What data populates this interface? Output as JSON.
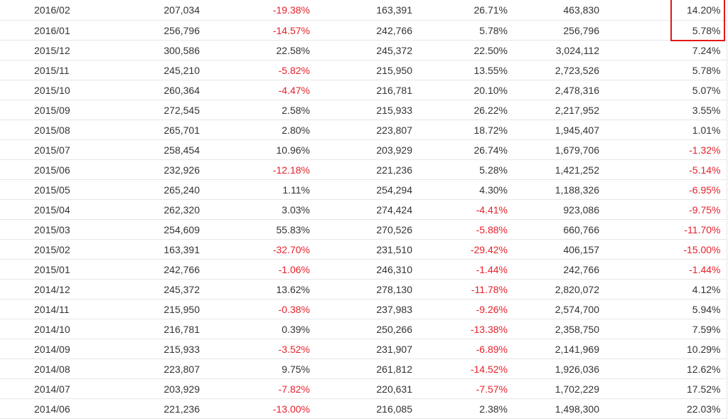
{
  "colors": {
    "negative": "#e8202a",
    "text": "#333333",
    "highlight_box": "#e01818",
    "row_border": "#e6e6e6"
  },
  "table": {
    "rows": [
      [
        "2016/02",
        "207,034",
        "-19.38%",
        "163,391",
        "26.71%",
        "463,830",
        "14.20%"
      ],
      [
        "2016/01",
        "256,796",
        "-14.57%",
        "242,766",
        "5.78%",
        "256,796",
        "5.78%"
      ],
      [
        "2015/12",
        "300,586",
        "22.58%",
        "245,372",
        "22.50%",
        "3,024,112",
        "7.24%"
      ],
      [
        "2015/11",
        "245,210",
        "-5.82%",
        "215,950",
        "13.55%",
        "2,723,526",
        "5.78%"
      ],
      [
        "2015/10",
        "260,364",
        "-4.47%",
        "216,781",
        "20.10%",
        "2,478,316",
        "5.07%"
      ],
      [
        "2015/09",
        "272,545",
        "2.58%",
        "215,933",
        "26.22%",
        "2,217,952",
        "3.55%"
      ],
      [
        "2015/08",
        "265,701",
        "2.80%",
        "223,807",
        "18.72%",
        "1,945,407",
        "1.01%"
      ],
      [
        "2015/07",
        "258,454",
        "10.96%",
        "203,929",
        "26.74%",
        "1,679,706",
        "-1.32%"
      ],
      [
        "2015/06",
        "232,926",
        "-12.18%",
        "221,236",
        "5.28%",
        "1,421,252",
        "-5.14%"
      ],
      [
        "2015/05",
        "265,240",
        "1.11%",
        "254,294",
        "4.30%",
        "1,188,326",
        "-6.95%"
      ],
      [
        "2015/04",
        "262,320",
        "3.03%",
        "274,424",
        "-4.41%",
        "923,086",
        "-9.75%"
      ],
      [
        "2015/03",
        "254,609",
        "55.83%",
        "270,526",
        "-5.88%",
        "660,766",
        "-11.70%"
      ],
      [
        "2015/02",
        "163,391",
        "-32.70%",
        "231,510",
        "-29.42%",
        "406,157",
        "-15.00%"
      ],
      [
        "2015/01",
        "242,766",
        "-1.06%",
        "246,310",
        "-1.44%",
        "242,766",
        "-1.44%"
      ],
      [
        "2014/12",
        "245,372",
        "13.62%",
        "278,130",
        "-11.78%",
        "2,820,072",
        "4.12%"
      ],
      [
        "2014/11",
        "215,950",
        "-0.38%",
        "237,983",
        "-9.26%",
        "2,574,700",
        "5.94%"
      ],
      [
        "2014/10",
        "216,781",
        "0.39%",
        "250,266",
        "-13.38%",
        "2,358,750",
        "7.59%"
      ],
      [
        "2014/09",
        "215,933",
        "-3.52%",
        "231,907",
        "-6.89%",
        "2,141,969",
        "10.29%"
      ],
      [
        "2014/08",
        "223,807",
        "9.75%",
        "261,812",
        "-14.52%",
        "1,926,036",
        "12.62%"
      ],
      [
        "2014/07",
        "203,929",
        "-7.82%",
        "220,631",
        "-7.57%",
        "1,702,229",
        "17.52%"
      ],
      [
        "2014/06",
        "221,236",
        "-13.00%",
        "216,085",
        "2.38%",
        "1,498,300",
        "22.03%"
      ]
    ]
  }
}
